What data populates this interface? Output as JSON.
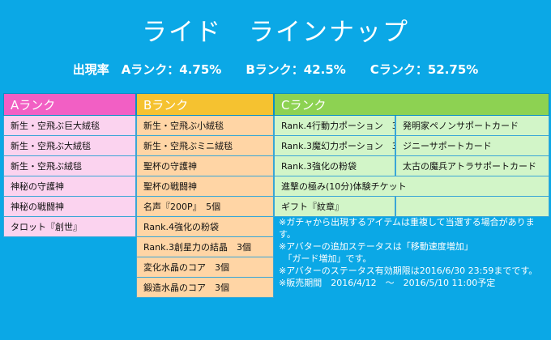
{
  "title": "ライド　ラインナップ",
  "rates": "出現率　Aランク：4.75%　　Bランク：42.5%　　Cランク：52.75%",
  "columns": {
    "a": {
      "header": "Aランク",
      "items": [
        "新生・空飛ぶ巨大絨毯",
        "新生・空飛ぶ大絨毯",
        "新生・空飛ぶ絨毯",
        "神秘の守護神",
        "神秘の戦闘神",
        "タロット『創世』"
      ]
    },
    "b": {
      "header": "Bランク",
      "items": [
        "新生・空飛ぶ小絨毯",
        "新生・空飛ぶミニ絨毯",
        "聖杯の守護神",
        "聖杯の戦闘神",
        "名声『200P』　5個",
        "Rank.4強化の粉袋",
        "Rank.3創星力の結晶　3個",
        "変化水晶のコア　3個",
        "鍛造水晶のコア　3個"
      ]
    },
    "c": {
      "header": "Cランク",
      "rows": [
        [
          "Rank.4行動力ポーション　3",
          "発明家ペノンサポートカード"
        ],
        [
          "Rank.3魔幻力ポーション　3",
          "ジニーサポートカード"
        ],
        [
          "Rank.3強化の粉袋",
          "太古の魔兵アトラサポートカード"
        ],
        [
          "進撃の極み(10分)体験チケット"
        ],
        [
          "ギフト『紋章』",
          ""
        ]
      ]
    }
  },
  "notes": [
    "※ガチャから出現するアイテムは重複して当選する場合があります。",
    "※アバターの追加ステータスは「移動速度増加」\n　「ガード増加」です。",
    "※アバターのステータス有効期限は2016/6/30 23:59までです。",
    "※販売期間　2016/4/12　～　2016/5/10 11:00予定"
  ],
  "colors": {
    "background": "#0ba8e6",
    "a_header": "#f25fc4",
    "b_header": "#f5c230",
    "c_header": "#8dd252"
  }
}
